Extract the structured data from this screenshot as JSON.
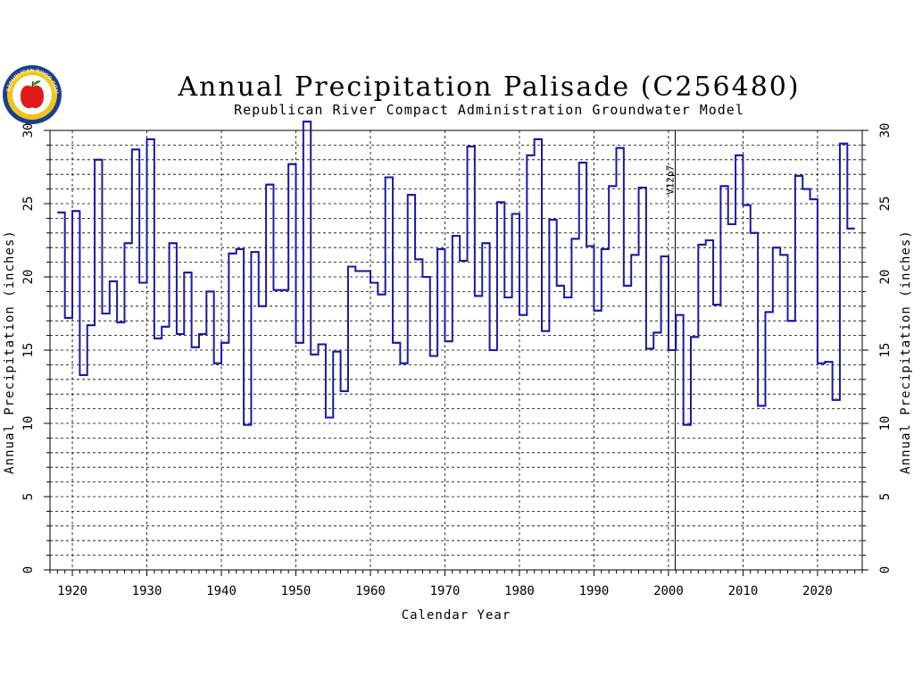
{
  "logo": {
    "icon": "apple-seal-icon",
    "text": "REPUBLICAN RIVER COMPACT"
  },
  "chart_data": {
    "type": "line",
    "style": "step",
    "title": "Annual Precipitation Palisade (C256480)",
    "subtitle": "Republican River Compact Administration Groundwater Model",
    "xlabel": "Calendar Year",
    "ylabel_left": "Annual Precipitation (inches)",
    "ylabel_right": "Annual Precipitation (inches)",
    "xlim": [
      1917,
      2026
    ],
    "ylim": [
      0,
      30
    ],
    "x_ticks": [
      1920,
      1930,
      1940,
      1950,
      1960,
      1970,
      1980,
      1990,
      2000,
      2010,
      2020
    ],
    "y_ticks": [
      0,
      5,
      10,
      15,
      20,
      25,
      30
    ],
    "grid": true,
    "series_color": "#1a1aa6",
    "annotation": {
      "label": "V12p7",
      "x": 2000.9
    },
    "series": [
      {
        "x": [
          1918,
          1919,
          1920,
          1921,
          1922,
          1923,
          1924,
          1925,
          1926,
          1927,
          1928,
          1929,
          1930,
          1931,
          1932,
          1933,
          1934,
          1935,
          1936,
          1937,
          1938,
          1939,
          1940,
          1941,
          1942,
          1943,
          1944,
          1945,
          1946,
          1947,
          1948,
          1949,
          1950,
          1951,
          1952,
          1953,
          1954,
          1955,
          1956,
          1957,
          1958,
          1959,
          1960,
          1961,
          1962,
          1963,
          1964,
          1965,
          1966,
          1967,
          1968,
          1969,
          1970,
          1971,
          1972,
          1973,
          1974,
          1975,
          1976,
          1977,
          1978,
          1979,
          1980,
          1981,
          1982,
          1983,
          1984,
          1985,
          1986,
          1987,
          1988,
          1989,
          1990,
          1991,
          1992,
          1993,
          1994,
          1995,
          1996,
          1997,
          1998,
          1999,
          2000,
          2001,
          2002,
          2003,
          2004,
          2005,
          2006,
          2007,
          2008,
          2009,
          2010,
          2011,
          2012,
          2013,
          2014,
          2015,
          2016,
          2017,
          2018,
          2019,
          2020,
          2021,
          2022,
          2023,
          2024
        ],
        "values": [
          24.4,
          17.2,
          24.5,
          13.3,
          16.7,
          28.0,
          17.5,
          19.7,
          16.9,
          22.3,
          28.7,
          19.6,
          29.4,
          15.8,
          16.6,
          22.3,
          16.1,
          20.3,
          15.2,
          16.1,
          19.0,
          14.1,
          15.5,
          21.6,
          21.9,
          9.9,
          21.7,
          18.0,
          26.3,
          19.1,
          19.1,
          27.7,
          15.5,
          30.6,
          14.7,
          15.4,
          10.4,
          14.9,
          12.2,
          20.7,
          20.4,
          20.4,
          19.6,
          18.8,
          26.8,
          15.5,
          14.1,
          25.6,
          21.2,
          20.0,
          14.6,
          21.9,
          15.6,
          22.8,
          21.1,
          28.9,
          18.7,
          22.3,
          15.0,
          25.1,
          18.6,
          24.3,
          17.4,
          28.3,
          29.4,
          16.3,
          23.9,
          19.4,
          18.6,
          22.6,
          27.8,
          22.1,
          17.7,
          21.9,
          26.2,
          28.8,
          19.4,
          21.5,
          26.1,
          15.1,
          16.2,
          21.4,
          15.0,
          17.4,
          9.9,
          15.9,
          22.2,
          22.5,
          18.1,
          26.2,
          23.6,
          28.3,
          24.9,
          23.0,
          11.2,
          17.6,
          22.0,
          21.5,
          17.0,
          26.9,
          26.0,
          25.3,
          14.1,
          14.2,
          11.6,
          29.1,
          23.3
        ]
      }
    ]
  }
}
